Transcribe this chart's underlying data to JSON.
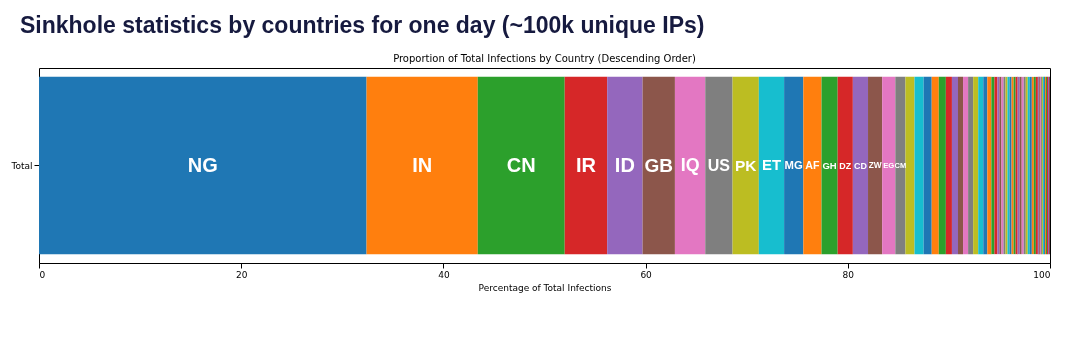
{
  "chart_data": {
    "type": "bar",
    "title": "Sinkhole statistics by countries for one day (~100k unique IPs)",
    "subtitle": "Proportion of Total Infections by Country (Descending Order)",
    "xlabel": "Percentage of Total Infections",
    "orientation": "horizontal",
    "stacked": true,
    "legend": false,
    "categories": [
      "Total"
    ],
    "xlim": [
      0,
      100
    ],
    "xticks": [
      0,
      20,
      40,
      60,
      80,
      100
    ],
    "series": [
      {
        "name": "NG",
        "color": "#1f77b4",
        "values": [
          32.4
        ]
      },
      {
        "name": "IN",
        "color": "#ff7f0e",
        "values": [
          11.0
        ]
      },
      {
        "name": "CN",
        "color": "#2ca02c",
        "values": [
          8.6
        ]
      },
      {
        "name": "IR",
        "color": "#d62728",
        "values": [
          4.2
        ]
      },
      {
        "name": "ID",
        "color": "#9467bd",
        "values": [
          3.5
        ]
      },
      {
        "name": "GB",
        "color": "#8c564b",
        "values": [
          3.2
        ]
      },
      {
        "name": "IQ",
        "color": "#e377c2",
        "values": [
          3.0
        ]
      },
      {
        "name": "US",
        "color": "#7f7f7f",
        "values": [
          2.7
        ]
      },
      {
        "name": "PK",
        "color": "#bcbd22",
        "values": [
          2.6
        ]
      },
      {
        "name": "ET",
        "color": "#17becf",
        "values": [
          2.5
        ]
      },
      {
        "name": "MG",
        "color": "#1f77b4",
        "values": [
          1.9
        ]
      },
      {
        "name": "AF",
        "color": "#ff7f0e",
        "values": [
          1.8
        ]
      },
      {
        "name": "GH",
        "color": "#2ca02c",
        "values": [
          1.6
        ]
      },
      {
        "name": "DZ",
        "color": "#d62728",
        "values": [
          1.5
        ]
      },
      {
        "name": "CD",
        "color": "#9467bd",
        "values": [
          1.5
        ]
      },
      {
        "name": "ZW",
        "color": "#8c564b",
        "values": [
          1.4
        ]
      },
      {
        "name": "EG",
        "color": "#e377c2",
        "values": [
          1.3
        ]
      },
      {
        "name": "CM",
        "color": "#7f7f7f",
        "values": [
          1.0
        ]
      },
      {
        "color": "#bcbd22",
        "values": [
          0.9
        ]
      },
      {
        "color": "#17becf",
        "values": [
          0.9
        ]
      },
      {
        "color": "#1f77b4",
        "values": [
          0.8
        ]
      },
      {
        "color": "#ff7f0e",
        "values": [
          0.7
        ]
      },
      {
        "color": "#2ca02c",
        "values": [
          0.7
        ]
      },
      {
        "color": "#d62728",
        "values": [
          0.6
        ]
      },
      {
        "color": "#9467bd",
        "values": [
          0.6
        ]
      },
      {
        "color": "#8c564b",
        "values": [
          0.5
        ]
      },
      {
        "color": "#e377c2",
        "values": [
          0.5
        ]
      },
      {
        "color": "#7f7f7f",
        "values": [
          0.5
        ]
      },
      {
        "color": "#bcbd22",
        "values": [
          0.5
        ]
      },
      {
        "color": "#17becf",
        "values": [
          0.5
        ]
      },
      {
        "color": "#1f77b4",
        "values": [
          0.4
        ]
      },
      {
        "color": "#ff7f0e",
        "values": [
          0.4
        ]
      },
      {
        "color": "#2ca02c",
        "values": [
          0.3
        ]
      },
      {
        "color": "#d62728",
        "values": [
          0.3
        ]
      },
      {
        "color": "#9467bd",
        "values": [
          0.2
        ]
      },
      {
        "color": "#8c564b",
        "values": [
          0.2
        ]
      },
      {
        "color": "#e377c2",
        "values": [
          0.2
        ]
      },
      {
        "color": "#7f7f7f",
        "values": [
          0.2
        ]
      },
      {
        "color": "#bcbd22",
        "values": [
          0.2
        ]
      },
      {
        "color": "#17becf",
        "values": [
          0.2
        ]
      },
      {
        "color": "#1f77b4",
        "values": [
          0.2
        ]
      },
      {
        "color": "#ff7f0e",
        "values": [
          0.2
        ]
      },
      {
        "color": "#2ca02c",
        "values": [
          0.2
        ]
      },
      {
        "color": "#d62728",
        "values": [
          0.2
        ]
      },
      {
        "color": "#9467bd",
        "values": [
          0.2
        ]
      },
      {
        "color": "#8c564b",
        "values": [
          0.2
        ]
      },
      {
        "color": "#e377c2",
        "values": [
          0.2
        ]
      },
      {
        "color": "#7f7f7f",
        "values": [
          0.2
        ]
      },
      {
        "color": "#bcbd22",
        "values": [
          0.2
        ]
      },
      {
        "color": "#17becf",
        "values": [
          0.2
        ]
      },
      {
        "color": "#1f77b4",
        "values": [
          0.2
        ]
      },
      {
        "color": "#ff7f0e",
        "values": [
          0.2
        ]
      },
      {
        "color": "#2ca02c",
        "values": [
          0.2
        ]
      },
      {
        "color": "#d62728",
        "values": [
          0.2
        ]
      },
      {
        "color": "#9467bd",
        "values": [
          0.1
        ]
      },
      {
        "color": "#8c564b",
        "values": [
          0.1
        ]
      },
      {
        "color": "#e377c2",
        "values": [
          0.1
        ]
      },
      {
        "color": "#7f7f7f",
        "values": [
          0.1
        ]
      },
      {
        "color": "#bcbd22",
        "values": [
          0.1
        ]
      },
      {
        "color": "#17becf",
        "values": [
          0.1
        ]
      },
      {
        "color": "#1f77b4",
        "values": [
          0.1
        ]
      },
      {
        "color": "#ff7f0e",
        "values": [
          0.1
        ]
      },
      {
        "color": "#2ca02c",
        "values": [
          0.1
        ]
      },
      {
        "color": "#d62728",
        "values": [
          0.1
        ]
      },
      {
        "color": "#9467bd",
        "values": [
          0.1
        ]
      },
      {
        "color": "#8c564b",
        "values": [
          0.1
        ]
      }
    ]
  }
}
